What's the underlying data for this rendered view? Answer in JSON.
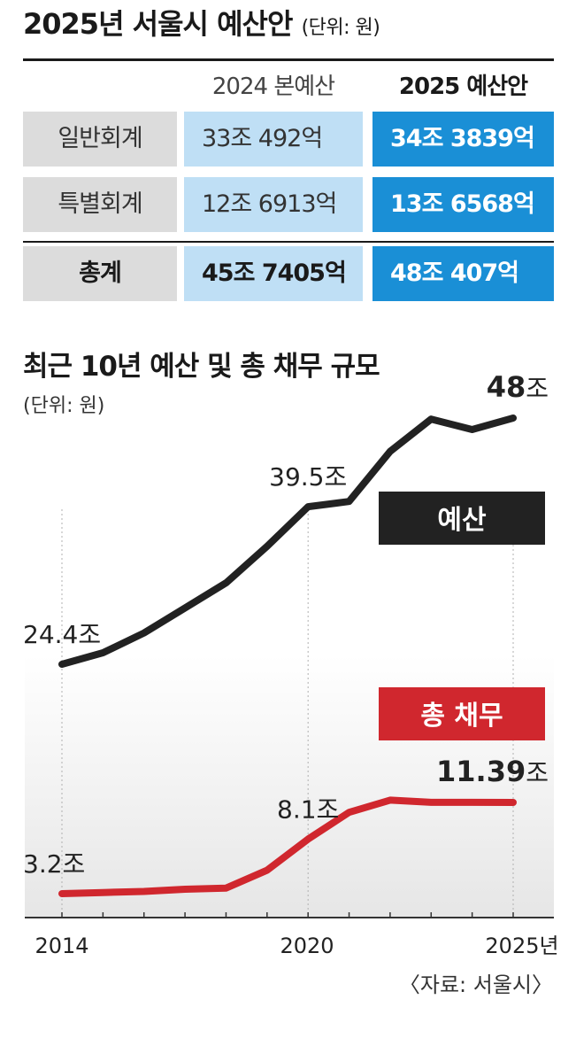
{
  "header": {
    "title": "2025년 서울시 예산안",
    "unit": "(단위: 원)"
  },
  "table": {
    "columns": [
      "2024 본예산",
      "2025 예산안"
    ],
    "rows": [
      {
        "label": "일반회계",
        "v2024": "33조 492억",
        "v2025": "34조 3839억"
      },
      {
        "label": "특별회계",
        "v2024": "12조 6913억",
        "v2025": "13조 6568억"
      },
      {
        "label": "총계",
        "v2024": "45조 7405억",
        "v2025": "48조 407억"
      }
    ]
  },
  "chart_data": {
    "type": "line",
    "title": "최근 10년 예산 및 총 채무 규모",
    "unit": "(단위: 원)",
    "x": [
      2014,
      2015,
      2016,
      2017,
      2018,
      2019,
      2020,
      2021,
      2022,
      2023,
      2024,
      2025
    ],
    "x_tick_labels": [
      "2014",
      "2020",
      "2025년"
    ],
    "series": [
      {
        "name": "예산",
        "color": "#222222",
        "values": [
          24.4,
          25.5,
          27.4,
          29.8,
          32.2,
          35.7,
          39.5,
          40.0,
          44.8,
          47.9,
          46.9,
          48.0
        ]
      },
      {
        "name": "총 채무",
        "color": "#d0272e",
        "values": [
          3.2,
          3.3,
          3.4,
          3.6,
          3.7,
          5.3,
          8.1,
          10.5,
          11.6,
          11.4,
          11.4,
          11.39
        ]
      }
    ],
    "annotations": [
      {
        "series": 0,
        "x": 2014,
        "text": "24.4조"
      },
      {
        "series": 0,
        "x": 2020,
        "text": "39.5조"
      },
      {
        "series": 0,
        "x": 2025,
        "value": "48",
        "suffix": "조"
      },
      {
        "series": 1,
        "x": 2014,
        "text": "3.2조"
      },
      {
        "series": 1,
        "x": 2020,
        "text": "8.1조"
      },
      {
        "series": 1,
        "x": 2025,
        "value": "11.39",
        "suffix": "조"
      }
    ],
    "legend_labels": [
      "예산",
      "총 채무"
    ]
  },
  "source": "〈자료: 서울시〉"
}
